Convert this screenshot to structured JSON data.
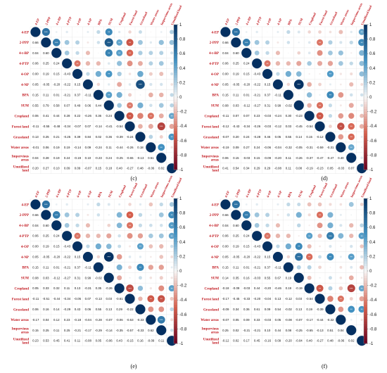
{
  "chart_data": [
    {
      "type": "heatmap",
      "title": "",
      "caption": "",
      "variables": [
        "4-EP",
        "2-PPP",
        "4-t-BP",
        "4-PTP",
        "4-OP",
        "4-NP",
        "BPA",
        "SUM",
        "Cropland",
        "Forest land",
        "Grassland",
        "Water areas",
        "Impervious areas",
        "Unutilized land"
      ],
      "lower": [
        [],
        [
          0.66
        ],
        [
          0.04,
          0.6
        ],
        [
          0.06,
          0.25,
          0.24
        ],
        [
          0.0,
          0.19,
          0.15,
          -0.43
        ],
        [
          0.05,
          -0.05,
          -0.2,
          -0.22,
          0.15
        ],
        [
          0.15,
          0.11,
          0.01,
          -0.21,
          0.37,
          -0.11
        ],
        [
          0.55,
          0.79,
          0.58,
          0.07,
          0.49,
          0.06,
          0.44
        ],
        [
          0.06,
          0.41,
          0.44,
          0.28,
          0.22,
          -0.26,
          0.36,
          0.24
        ],
        [
          -0.11,
          -0.55,
          -0.48,
          -0.34,
          -0.07,
          0.07,
          -0.14,
          -0.41,
          -0.54
        ],
        [
          0.13,
          0.25,
          0.21,
          -0.25,
          0.39,
          0.84,
          0.02,
          0.36,
          -0.39,
          -0.24
        ],
        [
          -0.01,
          0.06,
          0.19,
          0.19,
          -0.14,
          0.09,
          -0.24,
          0.11,
          -0.44,
          -0.26,
          0.18
        ],
        [
          0.04,
          0.28,
          0.19,
          0.24,
          -0.19,
          0.1,
          -0.23,
          0.24,
          -0.25,
          -0.65,
          -0.13,
          0.51
        ],
        [
          0.2,
          0.27,
          0.1,
          0.09,
          0.09,
          -0.07,
          0.15,
          0.18,
          0.4,
          -0.27,
          0.48,
          -0.06,
          0.02
        ]
      ]
    },
    {
      "type": "heatmap",
      "title": "",
      "caption": "(d)",
      "variables": [
        "4-EP",
        "2-PPP",
        "4-t-BP",
        "4-PTP",
        "4-OP",
        "4-NP",
        "BPA",
        "SUM",
        "Cropland",
        "Forest land",
        "Grassland",
        "Water areas",
        "Impervious areas",
        "Unutilized land"
      ],
      "lower": [
        [],
        [
          0.66
        ],
        [
          0.04,
          0.6
        ],
        [
          0.06,
          0.25,
          0.24
        ],
        [
          0.0,
          0.19,
          0.15,
          -0.43
        ],
        [
          0.05,
          -0.05,
          -0.2,
          -0.22,
          0.15
        ],
        [
          0.15,
          0.11,
          0.01,
          -0.21,
          0.37,
          -0.11
        ],
        [
          0.08,
          0.03,
          -0.12,
          -0.27,
          0.31,
          0.99,
          -0.02
        ],
        [
          -0.11,
          0.07,
          0.07,
          0.23,
          -0.03,
          -0.24,
          0.3,
          -0.23
        ],
        [
          -0.12,
          -0.43,
          -0.34,
          -0.26,
          -0.03,
          -0.12,
          0.03,
          -0.45,
          -0.54
        ],
        [
          -0.07,
          0.2,
          0.24,
          -0.28,
          0.46,
          0.05,
          0.55,
          0.14,
          0.15,
          -0.12
        ],
        [
          -0.19,
          0.09,
          0.27,
          0.24,
          -0.06,
          -0.04,
          -0.32,
          -0.05,
          -0.31,
          -0.59,
          -0.31
        ],
        [
          0.06,
          0.15,
          -0.03,
          0.15,
          -0.09,
          -0.2,
          0.11,
          -0.26,
          -0.37,
          -0.47,
          -0.47,
          0.4
        ],
        [
          0.41,
          0.54,
          0.34,
          0.29,
          0.29,
          -0.08,
          0.11,
          0.08,
          -0.19,
          -0.23,
          0.05,
          -0.03,
          0.07
        ]
      ]
    },
    {
      "type": "heatmap",
      "title": "",
      "caption": "(e)",
      "variables": [
        "4-EP",
        "2-PPP",
        "4-t-BP",
        "4-PTP",
        "4-OP",
        "4-NP",
        "BPA",
        "SUM",
        "Cropland",
        "Forest land",
        "Grassland",
        "Water areas",
        "Impervious areas",
        "Unutilized land"
      ],
      "lower": [
        [],
        [
          0.66
        ],
        [
          0.04,
          0.6
        ],
        [
          0.06,
          0.25,
          0.24
        ],
        [
          0.0,
          0.19,
          0.15,
          -0.43
        ],
        [
          0.05,
          -0.05,
          -0.2,
          -0.22,
          0.15
        ],
        [
          0.15,
          0.11,
          0.01,
          -0.21,
          0.37,
          -0.11
        ],
        [
          0.08,
          0.03,
          -0.12,
          -0.27,
          0.31,
          0.99,
          -0.02
        ],
        [
          0.05,
          0.33,
          0.32,
          0.11,
          0.13,
          -0.31,
          0.35,
          -0.26
        ],
        [
          -0.11,
          -0.51,
          -0.44,
          -0.34,
          -0.05,
          0.07,
          -0.13,
          0.03,
          -0.61
        ],
        [
          0.06,
          0.16,
          0.14,
          -0.29,
          0.43,
          0.06,
          0.55,
          0.13,
          0.29,
          -0.22
        ],
        [
          -0.17,
          0.04,
          0.12,
          0.23,
          -0.18,
          -0.04,
          -0.28,
          -0.07,
          -0.06,
          -0.53,
          -0.33
        ],
        [
          0.15,
          0.25,
          0.11,
          0.25,
          -0.21,
          -0.17,
          -0.29,
          -0.14,
          -0.35,
          -0.57,
          -0.33,
          0.62
        ],
        [
          0.23,
          0.53,
          0.45,
          0.41,
          0.11,
          -0.08,
          0.05,
          -0.06,
          0.43,
          -0.15,
          0.16,
          -0.09,
          0.11
        ]
      ]
    },
    {
      "type": "heatmap",
      "title": "",
      "caption": "(f)",
      "variables": [
        "4-EP",
        "2-PPP",
        "4-t-BP",
        "4-PTP",
        "4-OP",
        "4-NP",
        "BPA",
        "SUM",
        "Cropland",
        "Forest land",
        "Grassland",
        "Water areas",
        "Impervious areas",
        "Unutilized land"
      ],
      "lower": [
        [],
        [
          0.66
        ],
        [
          0.04,
          0.6
        ],
        [
          0.06,
          0.25,
          0.24
        ],
        [
          0.0,
          0.19,
          0.15,
          -0.43
        ],
        [
          0.05,
          -0.05,
          -0.2,
          -0.22,
          0.15
        ],
        [
          0.15,
          0.11,
          0.01,
          -0.21,
          0.37,
          -0.11
        ],
        [
          0.14,
          0.35,
          0.16,
          -0.03,
          0.55,
          0.67,
          0.19
        ],
        [
          -0.18,
          -0.09,
          -0.03,
          0.44,
          -0.2,
          -0.46,
          0.19,
          -0.19
        ],
        [
          -0.17,
          -0.45,
          -0.33,
          -0.2,
          -0.04,
          0.13,
          -0.12,
          0.03,
          -0.54
        ],
        [
          -0.09,
          0.34,
          0.36,
          0.61,
          0.09,
          0.54,
          -0.02,
          0.13,
          0.19,
          -0.39
        ],
        [
          -0.07,
          0.05,
          0.09,
          0.33,
          -0.03,
          0.05,
          -0.08,
          -0.07,
          -0.17,
          -0.44,
          -0.32
        ],
        [
          0.25,
          0.02,
          -0.21,
          -0.21,
          0.1,
          0.44,
          0.08,
          -0.25,
          -0.65,
          -0.13,
          0.51,
          0.04
        ],
        [
          -0.12,
          0.02,
          0.17,
          0.45,
          -0.16,
          0.09,
          -0.2,
          -0.04,
          0.4,
          -0.27,
          0.48,
          -0.06,
          0.02
        ]
      ]
    }
  ],
  "colorbar": {
    "ticks": [
      "1",
      "0.8",
      "0.6",
      "0.4",
      "0.2",
      "0",
      "-0.2",
      "-0.4",
      "-0.6",
      "-0.8",
      "-1"
    ],
    "range": [
      -1,
      1
    ],
    "positive_color": "#053061",
    "neutral_color": "#f7f7f7",
    "negative_color": "#67001f"
  },
  "captions": [
    "(c)",
    "(d)",
    "(e)",
    "(f)"
  ]
}
